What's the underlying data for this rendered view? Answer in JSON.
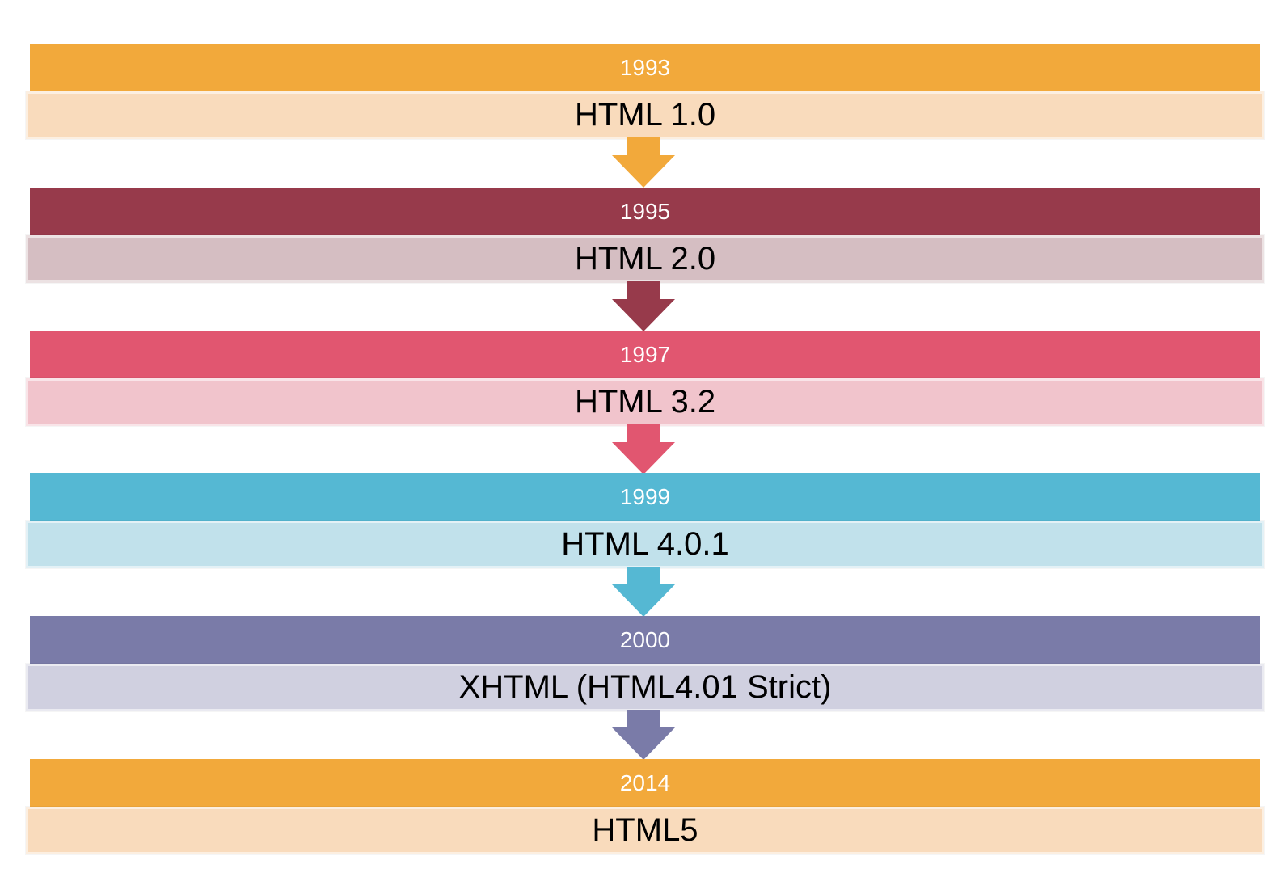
{
  "timeline": {
    "stages": [
      {
        "year": "1993",
        "version": "HTML 1.0",
        "accent": "#F2A93B",
        "tint": "#F9DBBC"
      },
      {
        "year": "1995",
        "version": "HTML 2.0",
        "accent": "#973A4B",
        "tint": "#D5BEC2"
      },
      {
        "year": "1997",
        "version": "HTML 3.2",
        "accent": "#E15670",
        "tint": "#F1C4CC"
      },
      {
        "year": "1999",
        "version": "HTML 4.0.1",
        "accent": "#55B8D3",
        "tint": "#C1E1EB"
      },
      {
        "year": "2000",
        "version": "XHTML (HTML4.01 Strict)",
        "accent": "#7A7BA8",
        "tint": "#D0D0E0"
      },
      {
        "year": "2014",
        "version": "HTML5",
        "accent": "#F2A93B",
        "tint": "#F9DBBC"
      }
    ]
  }
}
